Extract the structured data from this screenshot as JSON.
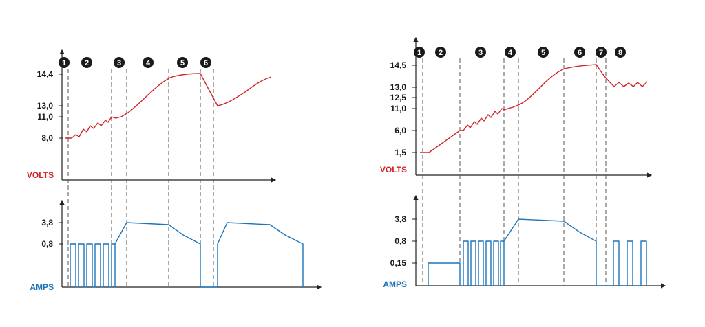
{
  "colors": {
    "volts": "#d2232a",
    "amps": "#1c75bc",
    "axis": "#222222",
    "phase_line": "#555555",
    "badge": "#1a1a1a"
  },
  "chart_data": [
    {
      "type": "line",
      "name": "",
      "phases": [
        "1",
        "2",
        "3",
        "4",
        "5",
        "6"
      ],
      "volts": {
        "label": "VOLTS",
        "y_ticks": [
          "8,0",
          "11,0",
          "13,0",
          "14,4"
        ],
        "y_tick_values": [
          8.0,
          11.0,
          13.0,
          14.4
        ]
      },
      "amps": {
        "label": "AMPS",
        "y_ticks": [
          "0,8",
          "3,8"
        ],
        "y_tick_values": [
          0.8,
          3.8
        ]
      }
    },
    {
      "type": "line",
      "name": "",
      "phases": [
        "1",
        "2",
        "3",
        "4",
        "5",
        "6",
        "7",
        "8"
      ],
      "volts": {
        "label": "VOLTS",
        "y_ticks": [
          "1,5",
          "6,0",
          "11,0",
          "12,5",
          "13,0",
          "14,5"
        ],
        "y_tick_values": [
          1.5,
          6.0,
          11.0,
          12.5,
          13.0,
          14.5
        ]
      },
      "amps": {
        "label": "AMPS",
        "y_ticks": [
          "0,15",
          "0,8",
          "3,8"
        ],
        "y_tick_values": [
          0.15,
          0.8,
          3.8
        ]
      }
    }
  ]
}
